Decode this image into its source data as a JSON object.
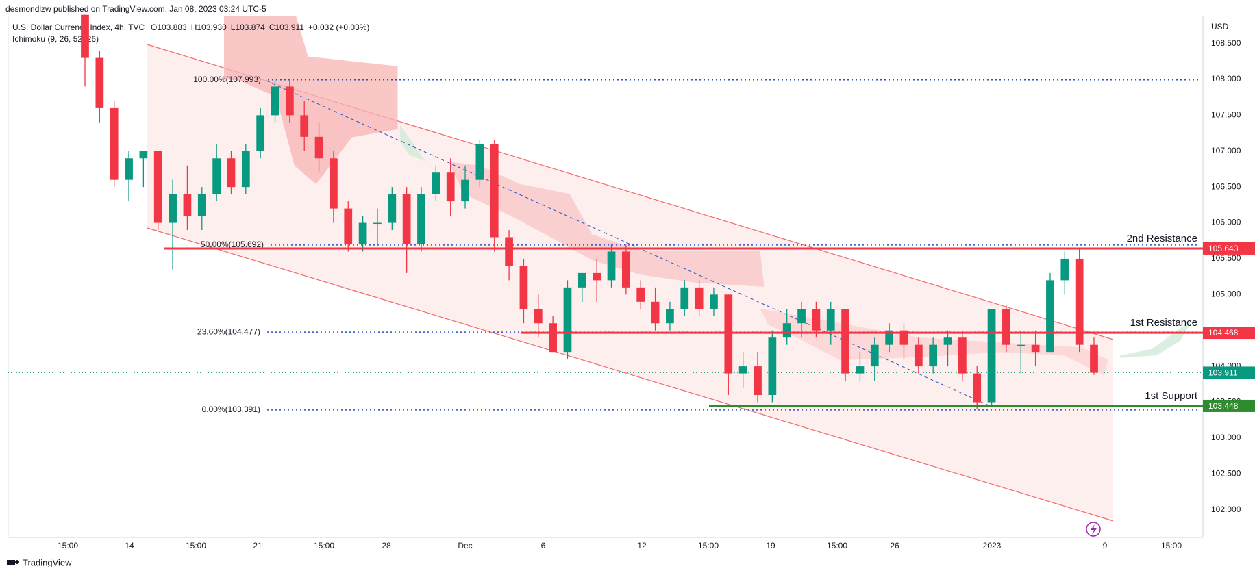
{
  "header": {
    "published": "desmondlzw published on TradingView.com, Jan 08, 2023 03:24 UTC-5",
    "symbol": "U.S. Dollar Currency Index, 4h, TVC",
    "ohlc": [
      "O103.883",
      "H103.930",
      "L103.874",
      "C103.911",
      "+0.032 (+0.03%)"
    ],
    "indicator": "Ichimoku (9, 26, 52, 26)",
    "currency": "USD"
  },
  "chart_data": {
    "type": "candlestick",
    "x_labels": [
      "15:00",
      "14",
      "15:00",
      "21",
      "15:00",
      "28",
      "Dec",
      "6",
      "12",
      "15:00",
      "19",
      "15:00",
      "26",
      "2023",
      "9",
      "15:00"
    ],
    "candles": {
      "open": [
        108.9,
        108.3,
        107.6,
        106.6,
        106.9,
        107.0,
        106.0,
        106.4,
        106.1,
        106.4,
        106.9,
        106.5,
        107.0,
        107.5,
        107.9,
        107.5,
        107.2,
        106.9,
        106.2,
        105.7,
        106.0,
        106.0,
        106.4,
        105.7,
        106.4,
        106.7,
        106.3,
        106.6,
        107.1,
        105.8,
        105.4,
        104.8,
        104.6,
        104.2,
        105.1,
        105.3,
        105.2,
        105.6,
        105.1,
        104.9,
        104.6,
        104.8,
        105.1,
        104.8,
        105.0,
        103.9,
        104.0,
        103.6,
        104.4,
        104.6,
        104.8,
        104.5,
        104.8,
        103.9,
        104.0,
        104.3,
        104.5,
        104.3,
        104.0,
        104.3,
        104.4,
        103.9,
        103.5,
        104.8,
        104.3,
        104.3,
        104.2,
        105.2,
        105.5,
        104.3
      ],
      "high": [
        108.9,
        108.4,
        107.7,
        107.0,
        107.0,
        107.0,
        106.6,
        106.8,
        106.5,
        107.1,
        107.0,
        107.1,
        107.6,
        108.0,
        108.0,
        107.7,
        107.4,
        107.0,
        106.3,
        106.1,
        106.2,
        106.5,
        106.5,
        106.5,
        106.8,
        106.9,
        106.8,
        107.15,
        107.15,
        105.9,
        105.5,
        105.0,
        104.7,
        105.2,
        105.3,
        105.5,
        105.7,
        105.7,
        105.2,
        105.1,
        104.9,
        105.2,
        105.2,
        105.1,
        105.0,
        104.2,
        104.2,
        104.5,
        104.8,
        104.9,
        104.9,
        104.9,
        104.8,
        104.2,
        104.4,
        104.6,
        104.6,
        104.4,
        104.4,
        104.5,
        104.5,
        104.0,
        104.8,
        104.85,
        104.5,
        104.5,
        105.3,
        105.6,
        105.65,
        104.4
      ],
      "low": [
        107.9,
        107.4,
        106.5,
        106.3,
        106.5,
        105.9,
        105.35,
        105.9,
        105.9,
        106.3,
        106.4,
        106.4,
        106.9,
        107.4,
        107.4,
        107.0,
        106.7,
        106.0,
        105.6,
        105.6,
        105.7,
        105.9,
        105.3,
        105.6,
        106.3,
        106.1,
        106.2,
        106.5,
        105.6,
        105.2,
        104.6,
        104.4,
        104.2,
        104.1,
        104.9,
        104.9,
        105.1,
        105.0,
        104.8,
        104.5,
        104.5,
        104.7,
        104.7,
        104.7,
        103.6,
        103.7,
        103.5,
        103.5,
        104.3,
        104.4,
        104.4,
        104.3,
        103.8,
        103.8,
        103.8,
        104.2,
        104.1,
        103.9,
        103.9,
        104.0,
        103.8,
        103.4,
        103.45,
        104.2,
        103.9,
        104.0,
        104.2,
        105.0,
        104.2,
        103.88
      ],
      "close": [
        108.3,
        107.6,
        106.6,
        106.9,
        107.0,
        106.0,
        106.4,
        106.1,
        106.4,
        106.9,
        106.5,
        107.0,
        107.5,
        107.9,
        107.5,
        107.2,
        106.9,
        106.2,
        105.7,
        106.0,
        106.0,
        106.4,
        105.7,
        106.4,
        106.7,
        106.3,
        106.6,
        107.1,
        105.8,
        105.4,
        104.8,
        104.6,
        104.2,
        105.1,
        105.3,
        105.2,
        105.6,
        105.1,
        104.9,
        104.6,
        104.8,
        105.1,
        104.8,
        105.0,
        103.9,
        104.0,
        103.6,
        104.4,
        104.6,
        104.8,
        104.5,
        104.8,
        103.9,
        104.0,
        104.3,
        104.5,
        104.3,
        104.0,
        104.3,
        104.4,
        103.9,
        103.5,
        104.8,
        104.3,
        104.3,
        104.2,
        105.2,
        105.5,
        104.3,
        103.91
      ]
    },
    "up_color": "#089981",
    "down_color": "#f23645",
    "ylim": [
      101.615,
      108.878
    ],
    "yticks": [
      {
        "value": 102,
        "label": "102.000"
      },
      {
        "value": 102.5,
        "label": "102.500"
      },
      {
        "value": 103,
        "label": "103.000"
      },
      {
        "value": 103.5,
        "label": "103.500"
      },
      {
        "value": 104,
        "label": "104.000"
      },
      {
        "value": 104.5,
        "label": "104.500"
      },
      {
        "value": 105,
        "label": "105.000"
      },
      {
        "value": 105.5,
        "label": "105.500"
      },
      {
        "value": 106,
        "label": "106.000"
      },
      {
        "value": 106.5,
        "label": "106.500"
      },
      {
        "value": 107,
        "label": "107.000"
      },
      {
        "value": 107.5,
        "label": "107.500"
      },
      {
        "value": 108,
        "label": "108.000"
      },
      {
        "value": 108.5,
        "label": "108.500"
      }
    ],
    "last_price": 103.911,
    "last_color": "#089981",
    "fib_color": "#2a52be",
    "fib_levels": [
      {
        "label": "100.00%(107.993)",
        "value": 107.993
      },
      {
        "label": "50.00%(105.692)",
        "value": 105.692
      },
      {
        "label": "23.60%(104.477)",
        "value": 104.477
      },
      {
        "label": "0.00%(103.391)",
        "value": 103.391
      }
    ],
    "levels": [
      {
        "name": "2nd Resistance",
        "value": 105.643,
        "color": "#f23645"
      },
      {
        "name": "1st Resistance",
        "value": 104.468,
        "color": "#f23645"
      },
      {
        "name": "1st Support",
        "value": 103.448,
        "color": "#2e8b2e"
      }
    ]
  },
  "footer": {
    "brand": "TradingView"
  }
}
